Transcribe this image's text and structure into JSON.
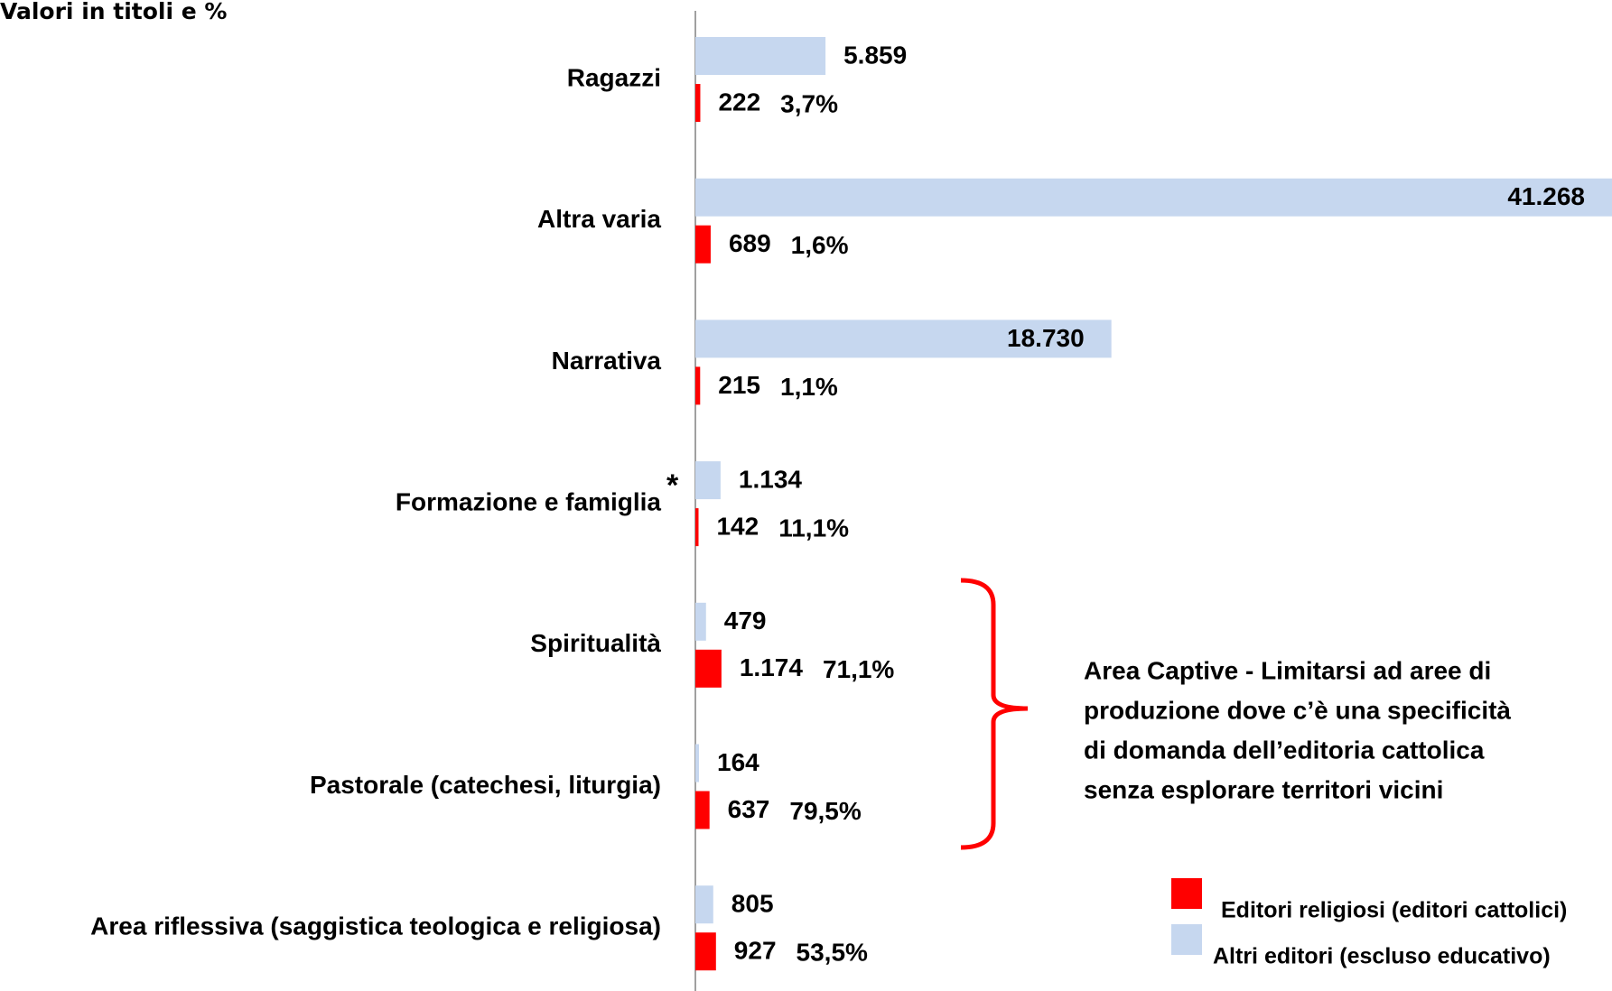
{
  "chart_data": {
    "type": "hbar",
    "title": "Valori in titoli e %",
    "categories": [
      "Ragazzi",
      "Altra varia",
      "Narrativa",
      "Formazione e famiglia",
      "Spiritualità",
      "Pastorale (catechesi, liturgia)",
      "Area riflessiva (saggistica teologica e religiosa)"
    ],
    "series": [
      {
        "name": "Altri editori (escluso educativo)",
        "color": "#c6d7ef",
        "values": [
          5859,
          41268,
          18730,
          1134,
          479,
          164,
          805
        ],
        "value_labels": [
          "5.859",
          "41.268",
          "18.730",
          "1.134",
          "479",
          "164",
          "805"
        ]
      },
      {
        "name": "Editori religiosi (editori cattolici)",
        "color": "#ff0000",
        "values": [
          222,
          689,
          215,
          142,
          1174,
          637,
          927
        ],
        "value_labels": [
          "222",
          "689",
          "215",
          "142",
          "1.174",
          "637",
          "927"
        ]
      }
    ],
    "shares": {
      "values": [
        3.7,
        1.6,
        1.1,
        11.1,
        71.1,
        79.5,
        53.5
      ],
      "labels": [
        "3,7%",
        "1,6%",
        "1,1%",
        "11,1%",
        "71,1%",
        "79,5%",
        "53,5%"
      ],
      "color": "#ff0000"
    },
    "asterisk": "*",
    "annotation": [
      "Area Captive - Limitarsi ad aree di",
      "produzione dove c’è una specificità",
      "di domanda dell’editoria cattolica",
      "senza esplorare territori vicini"
    ],
    "xlim": [
      0,
      41268
    ]
  }
}
